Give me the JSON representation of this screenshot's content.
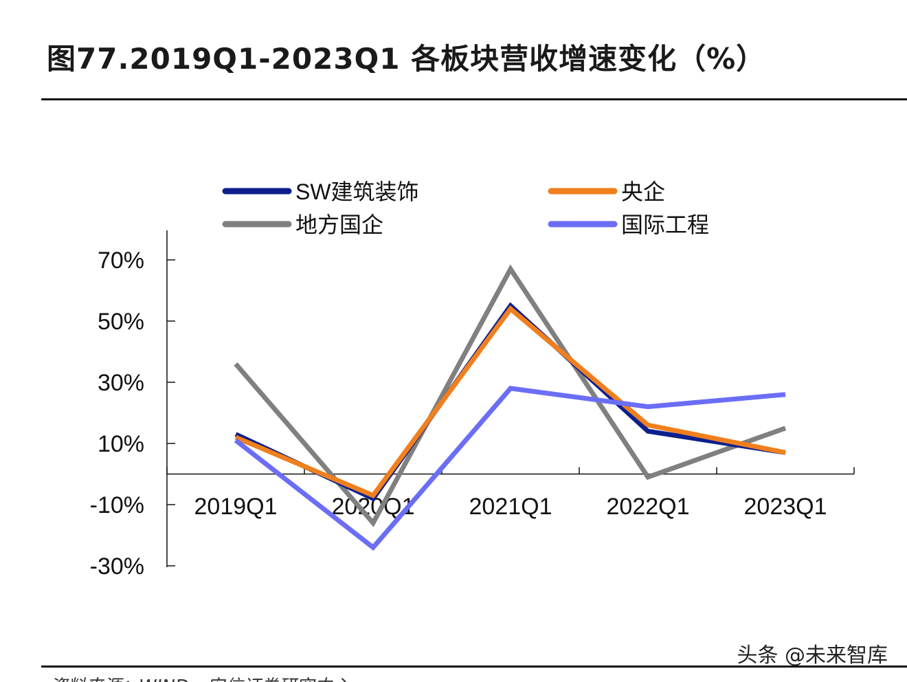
{
  "title": "图77.2019Q1-2023Q1 各板块营收增速变化（%）",
  "watermark": "头条 @未来智库",
  "source": "资料来源：WIND，安信证券研究中心",
  "chart_data": {
    "type": "line",
    "title": "图77.2019Q1-2023Q1 各板块营收增速变化（%）",
    "categories": [
      "2019Q1",
      "2020Q1",
      "2021Q1",
      "2022Q1",
      "2023Q1"
    ],
    "yticks": [
      "70%",
      "50%",
      "30%",
      "10%",
      "-10%",
      "-30%"
    ],
    "ytick_values": [
      70,
      50,
      30,
      10,
      -10,
      -30
    ],
    "ylim": [
      -30,
      70
    ],
    "grid": false,
    "legend_position": "top",
    "series": [
      {
        "name": "SW建筑装饰",
        "color": "#0d1f8c",
        "values": [
          13,
          -8,
          55,
          14,
          7
        ]
      },
      {
        "name": "央企",
        "color": "#f07f1e",
        "values": [
          12,
          -7,
          54,
          16,
          7
        ]
      },
      {
        "name": "地方国企",
        "color": "#808080",
        "values": [
          36,
          -16,
          67,
          -1,
          15
        ]
      },
      {
        "name": "国际工程",
        "color": "#6b6ef5",
        "values": [
          11,
          -24,
          28,
          22,
          26
        ]
      }
    ]
  }
}
